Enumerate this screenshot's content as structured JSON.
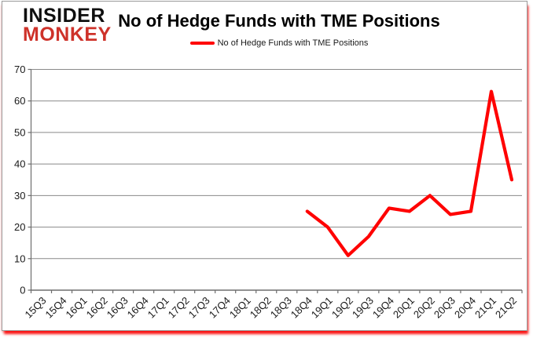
{
  "logo": {
    "line1": "INSIDER",
    "line2": "MONKEY"
  },
  "header": {
    "title": "No of Hedge Funds with TME Positions"
  },
  "legend": {
    "label": "No of Hedge Funds with TME Positions",
    "color": "#ff0000"
  },
  "chart_data": {
    "type": "line",
    "title": "No of Hedge Funds with TME Positions",
    "categories": [
      "15Q3",
      "15Q4",
      "16Q1",
      "16Q2",
      "16Q3",
      "16Q4",
      "17Q1",
      "17Q2",
      "17Q3",
      "17Q4",
      "18Q1",
      "18Q2",
      "18Q3",
      "18Q4",
      "19Q1",
      "19Q2",
      "19Q3",
      "19Q4",
      "20Q1",
      "20Q2",
      "20Q3",
      "20Q4",
      "21Q1",
      "21Q2"
    ],
    "series": [
      {
        "name": "No of Hedge Funds with TME Positions",
        "color": "#ff0000",
        "values": [
          null,
          null,
          null,
          null,
          null,
          null,
          null,
          null,
          null,
          null,
          null,
          null,
          null,
          25,
          20,
          11,
          17,
          26,
          25,
          30,
          24,
          25,
          63,
          35
        ]
      }
    ],
    "ylabel": "",
    "xlabel": "",
    "ylim": [
      0,
      70
    ],
    "yticks": [
      0,
      10,
      20,
      30,
      40,
      50,
      60,
      70
    ],
    "grid": true,
    "legend_position": "top",
    "x_label_rotation_deg": -45
  },
  "colors": {
    "series_red": "#ff0000",
    "logo_red": "#ce322a",
    "gridline": "#898989",
    "axis": "#6e6e6e",
    "axis_text": "#1a1a1a"
  }
}
